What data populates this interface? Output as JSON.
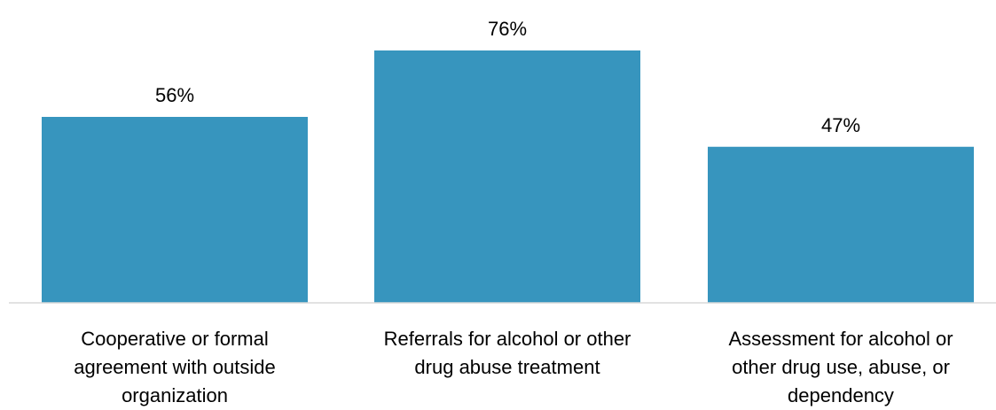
{
  "chart_data": {
    "type": "bar",
    "categories": [
      [
        "Cooperative or formal",
        "agreement with outside",
        "organization"
      ],
      [
        "Referrals for alcohol or other",
        "drug abuse treatment"
      ],
      [
        "Assessment for alcohol or",
        "other drug use, abuse, or",
        "dependency"
      ]
    ],
    "values": [
      56,
      76,
      47
    ],
    "value_labels": [
      "56%",
      "76%",
      "47%"
    ],
    "title": "",
    "xlabel": "",
    "ylabel": "",
    "ylim": [
      0,
      100
    ],
    "grid": false,
    "legend": "none",
    "bar_color": "#3795BE",
    "axis_color": "#D9D9D9"
  }
}
